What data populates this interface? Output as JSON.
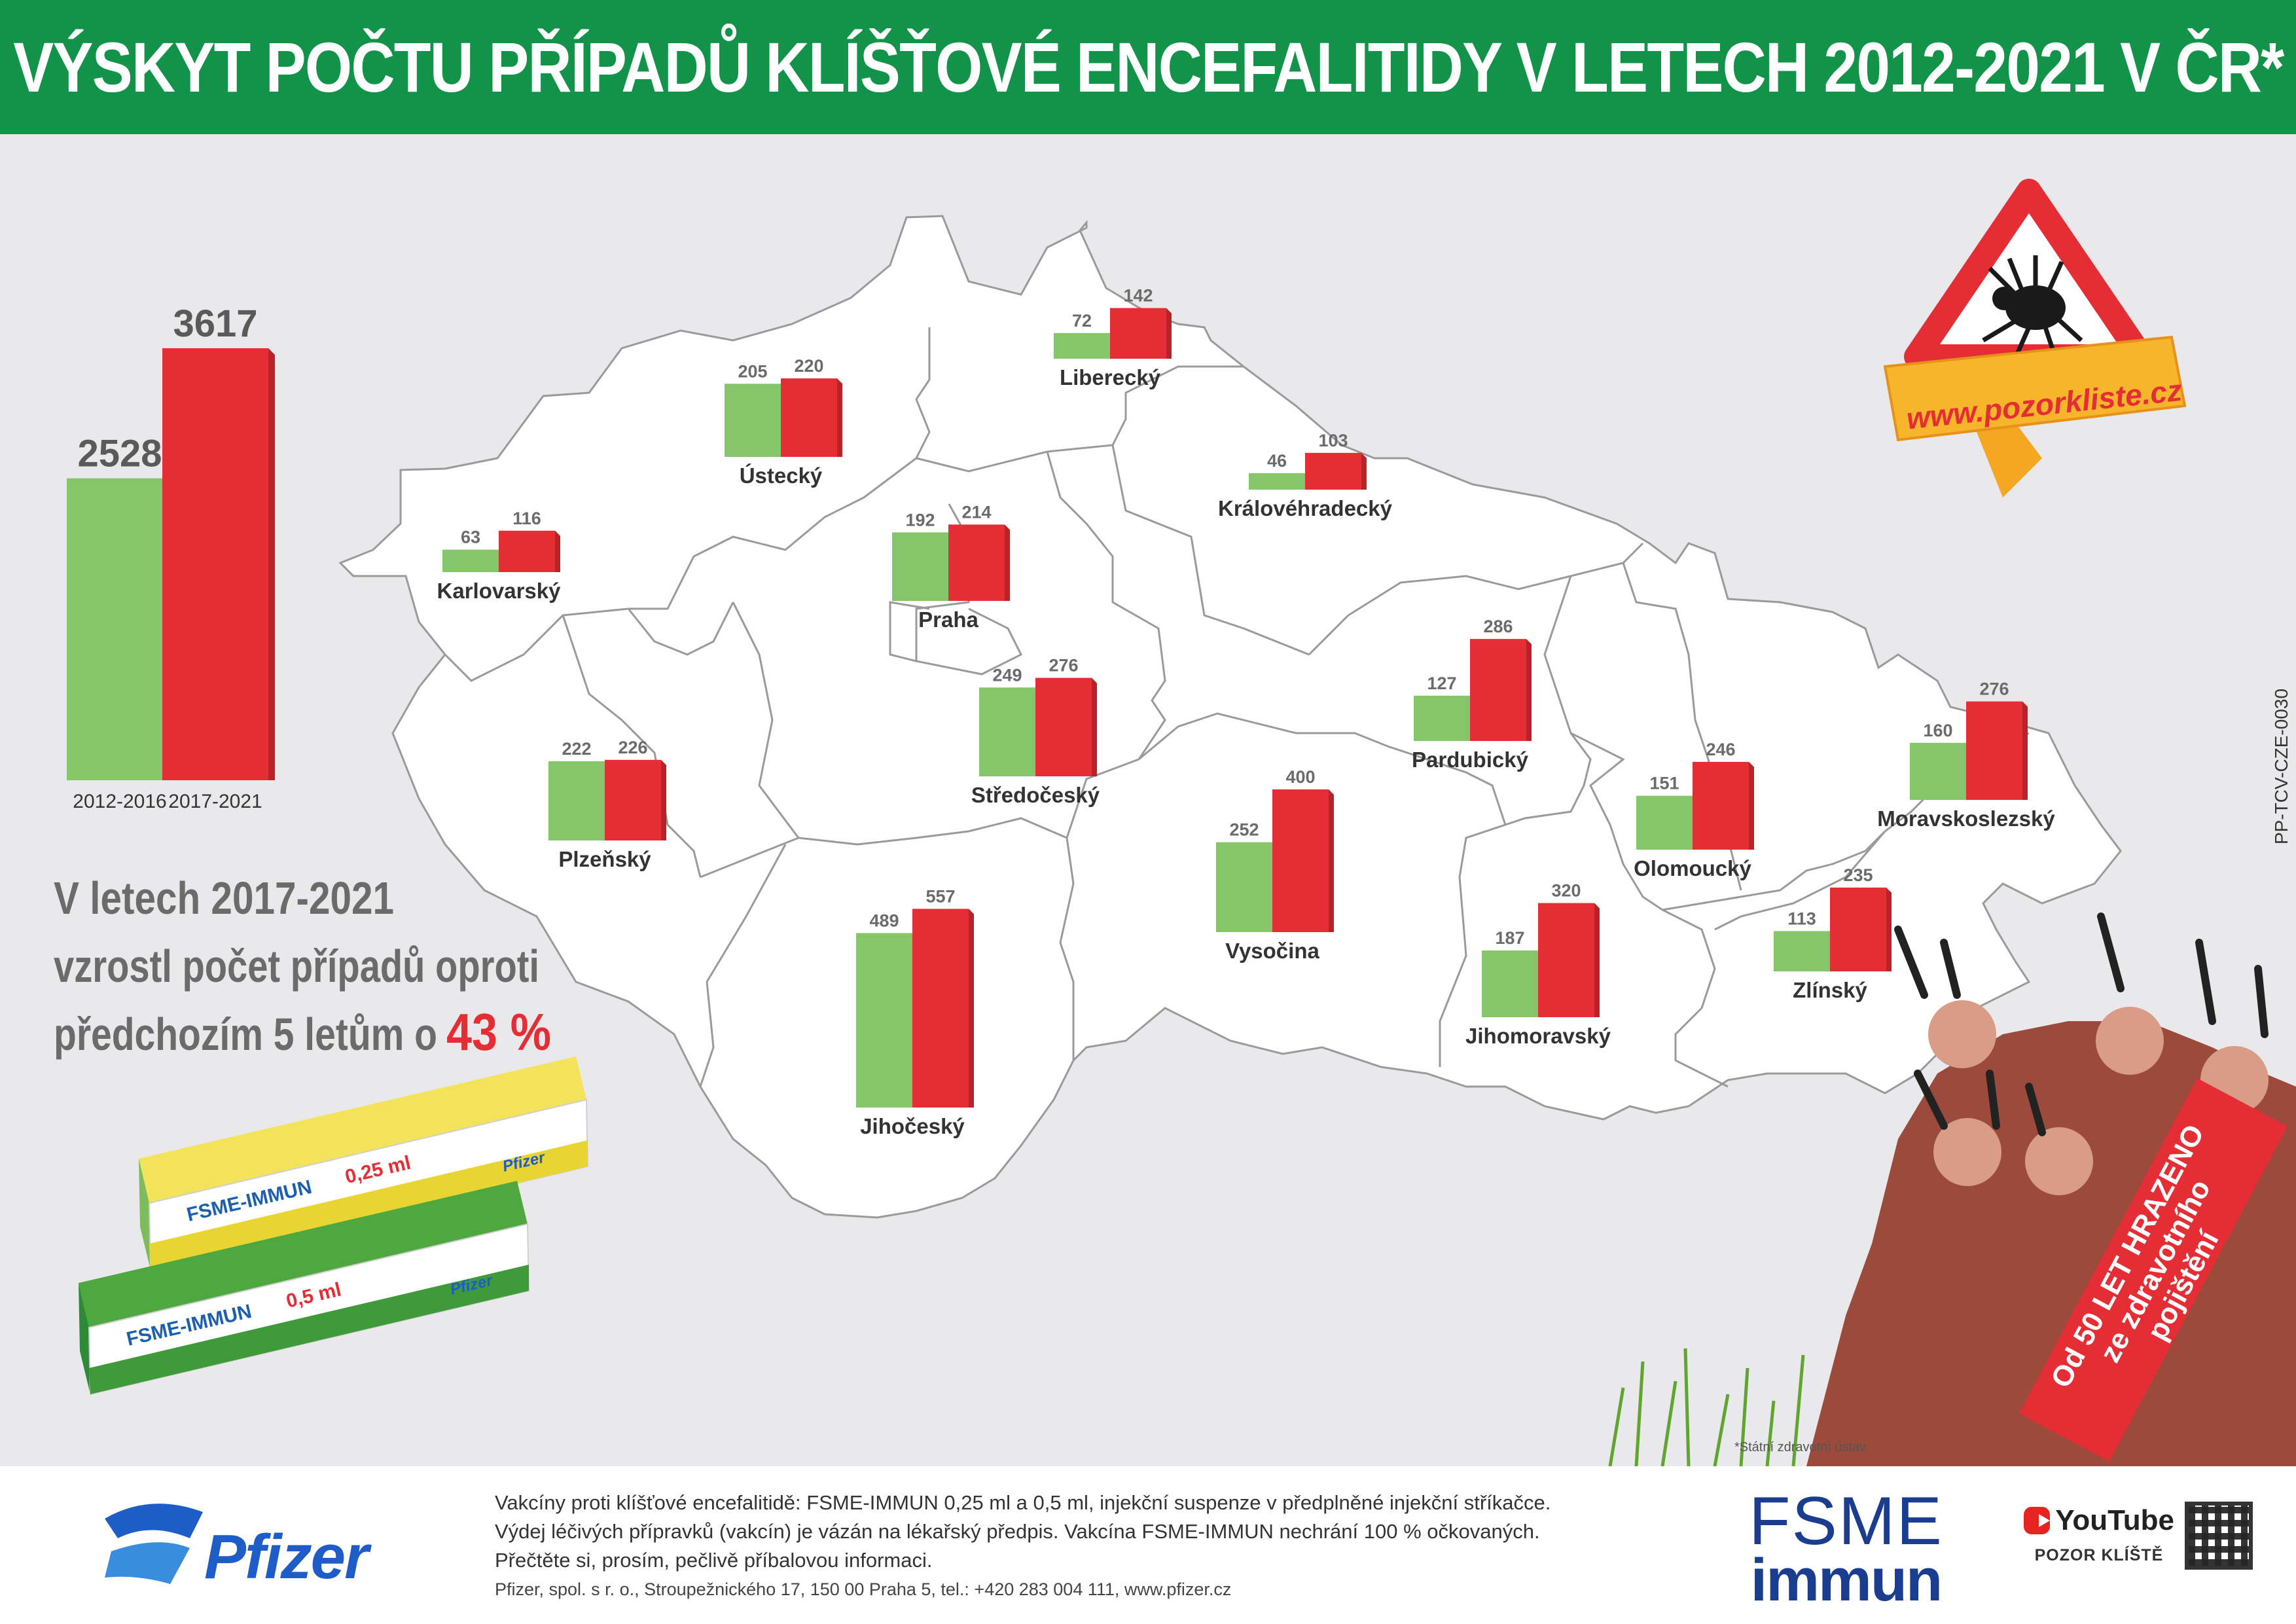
{
  "header": {
    "title": "VÝSKYT POČTU PŘÍPADŮ KLÍŠŤOVÉ ENCEFALITIDY V LETECH 2012-2021 V ČR*"
  },
  "colors": {
    "green": "#86c66b",
    "red": "#e52d35",
    "header_green": "#13924a",
    "bg": "#e9e9eb"
  },
  "summary": {
    "line1": "V letech 2017-2021",
    "line2": "vzrostl počet případů oproti",
    "line3": "předchozím 5 letům o",
    "percent": "43 %"
  },
  "chart_data": [
    {
      "type": "bar",
      "categories": [
        "2012-2016",
        "2017-2021"
      ],
      "values": [
        2528,
        3617
      ],
      "ylim": [
        0,
        3617
      ]
    },
    {
      "type": "bar",
      "series": [
        {
          "name": "2012-2016"
        },
        {
          "name": "2017-2021"
        }
      ],
      "regions": [
        {
          "name": "Liberecký",
          "values": [
            72,
            142
          ]
        },
        {
          "name": "Ústecký",
          "values": [
            205,
            220
          ]
        },
        {
          "name": "Královéhradecký",
          "values": [
            46,
            103
          ]
        },
        {
          "name": "Karlovarský",
          "values": [
            63,
            116
          ]
        },
        {
          "name": "Praha",
          "values": [
            192,
            214
          ]
        },
        {
          "name": "Středočeský",
          "values": [
            249,
            276
          ]
        },
        {
          "name": "Pardubický",
          "values": [
            127,
            286
          ]
        },
        {
          "name": "Plzeňský",
          "values": [
            222,
            226
          ]
        },
        {
          "name": "Vysočina",
          "values": [
            252,
            400
          ]
        },
        {
          "name": "Olomoucký",
          "values": [
            151,
            246
          ]
        },
        {
          "name": "Moravskoslezský",
          "values": [
            160,
            276
          ]
        },
        {
          "name": "Jihočeský",
          "values": [
            489,
            557
          ]
        },
        {
          "name": "Jihomoravský",
          "values": [
            187,
            320
          ]
        },
        {
          "name": "Zlínský",
          "values": [
            113,
            235
          ]
        }
      ]
    }
  ],
  "products": [
    {
      "name": "FSME-IMMUN",
      "dose": "0,25 ml",
      "brand": "Pfizer"
    },
    {
      "name": "FSME-IMMUN",
      "dose": "0,5 ml",
      "brand": "Pfizer"
    }
  ],
  "sign": {
    "url": "www.pozorkliste.cz"
  },
  "ribbon": {
    "line1": "Od 50 LET HRAZENO",
    "line2": "ze zdravotního",
    "line3": "pojištění"
  },
  "side_code": "PP-TCV-CZE-0030",
  "footnote": "*Státní zdravotní ústav",
  "footer": {
    "legal1": "Vakcíny proti klíšťové encefalitidě: FSME-IMMUN 0,25 ml a 0,5 ml, injekční suspenze v předplněné injekční stříkačce.",
    "legal2": "Výdej léčivých přípravků (vakcín) je vázán na lékařský předpis. Vakcína FSME-IMMUN nechrání 100 % očkovaných.",
    "legal3": "Přečtěte si, prosím, pečlivě příbalovou informaci.",
    "legal4": "Pfizer, spol. s r. o., Stroupežnického 17, 150 00 Praha 5, tel.: +420 283 004 111, www.pfizer.cz",
    "pfizer": "Pfizer",
    "fsme1": "FSME",
    "fsme2": "immun",
    "youtube": "YouTube",
    "youtube_sub": "POZOR KLÍŠTĚ"
  }
}
